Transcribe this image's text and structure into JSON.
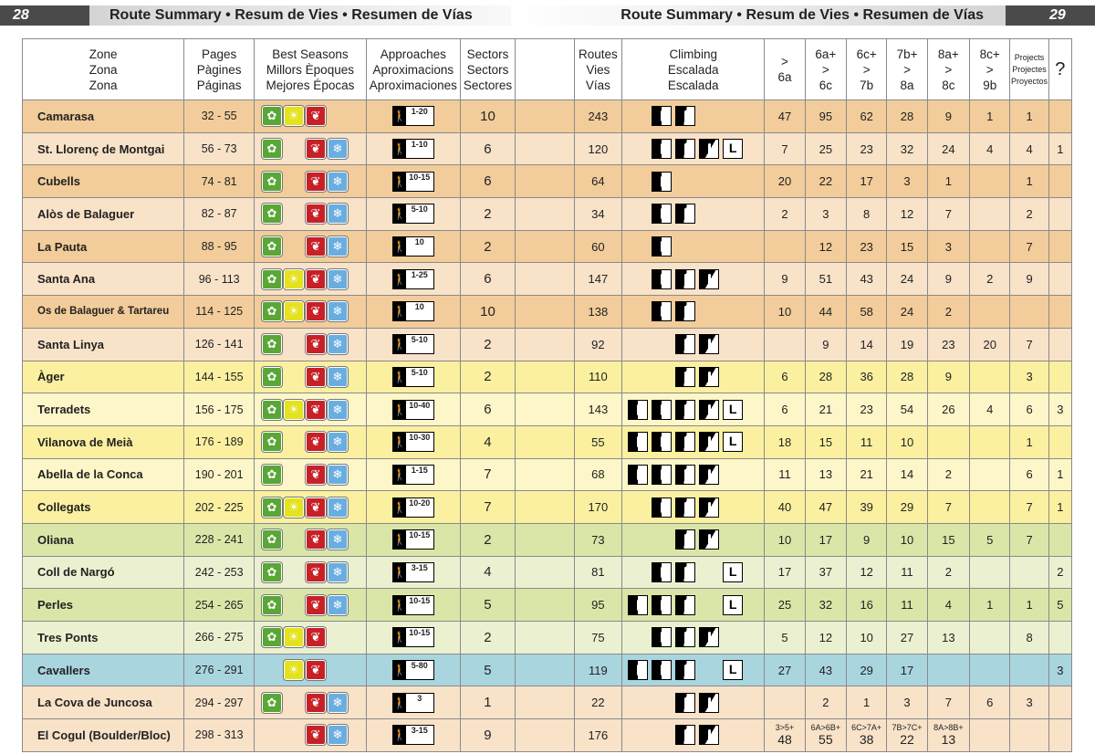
{
  "header": {
    "page_left": "28",
    "page_right": "29",
    "title": "Route Summary • Resum de Vies • Resumen de Vías"
  },
  "colors": {
    "orange": "#f2cc9a",
    "orange_light": "#f8e2c8",
    "yellow": "#fbf0a0",
    "yellow_light": "#fdf6c8",
    "green": "#d9e6a8",
    "green_light": "#ebf1d0",
    "blue": "#a9d5df"
  },
  "columns": {
    "zone": [
      "Zone",
      "Zona",
      "Zona"
    ],
    "pages": [
      "Pages",
      "Pàgines",
      "Páginas"
    ],
    "seasons": [
      "Best Seasons",
      "Millors Èpoques",
      "Mejores Épocas"
    ],
    "approaches": [
      "Approaches",
      "Aproximacions",
      "Aproximaciones"
    ],
    "sectors": [
      "Sectors",
      "Sectors",
      "Sectores"
    ],
    "routes": [
      "Routes",
      "Vies",
      "Vías"
    ],
    "climbing": [
      "Climbing",
      "Escalada",
      "Escalada"
    ],
    "g1": [
      ">",
      "6a"
    ],
    "g2": [
      "6a+",
      ">",
      "6c"
    ],
    "g3": [
      "6c+",
      ">",
      "7b"
    ],
    "g4": [
      "7b+",
      ">",
      "8a"
    ],
    "g5": [
      "8a+",
      ">",
      "8c"
    ],
    "g6": [
      "8c+",
      ">",
      "9b"
    ],
    "projects": [
      "Projects",
      "Projectes",
      "Proyectos"
    ],
    "unknown": "?"
  },
  "rows": [
    {
      "zone": "Camarasa",
      "pages": "32 - 55",
      "seasons": [
        "spring",
        "summer",
        "autumn",
        "blank"
      ],
      "approach": "1-20",
      "sectors": "10",
      "routes": "243",
      "climb": [
        "blank",
        "vert",
        "slab",
        "blank",
        "blank"
      ],
      "g": [
        "47",
        "95",
        "62",
        "28",
        "9",
        "1",
        "1",
        ""
      ],
      "color": "orange"
    },
    {
      "zone": "St. Llorenç de Montgai",
      "pages": "56 - 73",
      "seasons": [
        "spring",
        "blank",
        "autumn",
        "winter"
      ],
      "approach": "1-10",
      "sectors": "6",
      "routes": "120",
      "climb": [
        "blank",
        "vert",
        "slab",
        "over",
        "long"
      ],
      "g": [
        "7",
        "25",
        "23",
        "32",
        "24",
        "4",
        "4",
        "1"
      ],
      "color": "orange_light"
    },
    {
      "zone": "Cubells",
      "pages": "74 - 81",
      "seasons": [
        "spring",
        "blank",
        "autumn",
        "winter"
      ],
      "approach": "10-15",
      "sectors": "6",
      "routes": "64",
      "climb": [
        "blank",
        "vert",
        "blank",
        "blank",
        "blank"
      ],
      "g": [
        "20",
        "22",
        "17",
        "3",
        "1",
        "",
        "1",
        ""
      ],
      "color": "orange"
    },
    {
      "zone": "Alòs de Balaguer",
      "pages": "82 - 87",
      "seasons": [
        "spring",
        "blank",
        "autumn",
        "winter"
      ],
      "approach": "5-10",
      "sectors": "2",
      "routes": "34",
      "climb": [
        "blank",
        "vert",
        "slab",
        "blank",
        "blank"
      ],
      "g": [
        "2",
        "3",
        "8",
        "12",
        "7",
        "",
        "2",
        ""
      ],
      "color": "orange_light"
    },
    {
      "zone": "La Pauta",
      "pages": "88 - 95",
      "seasons": [
        "spring",
        "blank",
        "autumn",
        "winter"
      ],
      "approach": "10",
      "sectors": "2",
      "routes": "60",
      "climb": [
        "blank",
        "vert",
        "blank",
        "blank",
        "blank"
      ],
      "g": [
        "",
        "12",
        "23",
        "15",
        "3",
        "",
        "7",
        ""
      ],
      "color": "orange"
    },
    {
      "zone": "Santa Ana",
      "pages": "96 - 113",
      "seasons": [
        "spring",
        "summer",
        "autumn",
        "winter"
      ],
      "approach": "1-25",
      "sectors": "6",
      "routes": "147",
      "climb": [
        "blank",
        "vert",
        "slab",
        "over",
        "blank"
      ],
      "g": [
        "9",
        "51",
        "43",
        "24",
        "9",
        "2",
        "9",
        ""
      ],
      "color": "orange_light"
    },
    {
      "zone": "Os de Balaguer  & Tartareu",
      "pages": "114 - 125",
      "seasons": [
        "spring",
        "summer",
        "autumn",
        "winter"
      ],
      "approach": "10",
      "sectors": "10",
      "routes": "138",
      "climb": [
        "blank",
        "vert",
        "slab",
        "blank",
        "blank"
      ],
      "g": [
        "10",
        "44",
        "58",
        "24",
        "2",
        "",
        "",
        ""
      ],
      "color": "orange",
      "small": true
    },
    {
      "zone": "Santa Linya",
      "pages": "126 - 141",
      "seasons": [
        "spring",
        "blank",
        "autumn",
        "winter"
      ],
      "approach": "5-10",
      "sectors": "2",
      "routes": "92",
      "climb": [
        "blank",
        "blank",
        "slab",
        "over",
        "blank"
      ],
      "g": [
        "",
        "9",
        "14",
        "19",
        "23",
        "20",
        "7",
        ""
      ],
      "color": "orange_light"
    },
    {
      "zone": "Àger",
      "pages": "144 - 155",
      "seasons": [
        "spring",
        "blank",
        "autumn",
        "winter"
      ],
      "approach": "5-10",
      "sectors": "2",
      "routes": "110",
      "climb": [
        "blank",
        "blank",
        "slab",
        "over",
        "blank"
      ],
      "g": [
        "6",
        "28",
        "36",
        "28",
        "9",
        "",
        "3",
        ""
      ],
      "color": "yellow"
    },
    {
      "zone": "Terradets",
      "pages": "156 - 175",
      "seasons": [
        "spring",
        "summer",
        "autumn",
        "winter"
      ],
      "approach": "10-40",
      "sectors": "6",
      "routes": "143",
      "climb": [
        "vert",
        "vert",
        "slab",
        "over",
        "long"
      ],
      "g": [
        "6",
        "21",
        "23",
        "54",
        "26",
        "4",
        "6",
        "3"
      ],
      "color": "yellow_light"
    },
    {
      "zone": "Vilanova de Meià",
      "pages": "176 - 189",
      "seasons": [
        "spring",
        "blank",
        "autumn",
        "winter"
      ],
      "approach": "10-30",
      "sectors": "4",
      "routes": "55",
      "climb": [
        "vert",
        "vert",
        "slab",
        "over",
        "long"
      ],
      "g": [
        "18",
        "15",
        "11",
        "10",
        "",
        "",
        "1",
        ""
      ],
      "color": "yellow"
    },
    {
      "zone": "Abella de la Conca",
      "pages": "190 - 201",
      "seasons": [
        "spring",
        "blank",
        "autumn",
        "winter"
      ],
      "approach": "1-15",
      "sectors": "7",
      "routes": "68",
      "climb": [
        "vert",
        "vert",
        "slab",
        "over",
        "blank"
      ],
      "g": [
        "11",
        "13",
        "21",
        "14",
        "2",
        "",
        "6",
        "1"
      ],
      "color": "yellow_light"
    },
    {
      "zone": "Collegats",
      "pages": "202 - 225",
      "seasons": [
        "spring",
        "summer",
        "autumn",
        "winter"
      ],
      "approach": "10-20",
      "sectors": "7",
      "routes": "170",
      "climb": [
        "blank",
        "vert",
        "slab",
        "over",
        "blank"
      ],
      "g": [
        "40",
        "47",
        "39",
        "29",
        "7",
        "",
        "7",
        "1"
      ],
      "color": "yellow"
    },
    {
      "zone": "Oliana",
      "pages": "228 - 241",
      "seasons": [
        "spring",
        "blank",
        "autumn",
        "winter"
      ],
      "approach": "10-15",
      "sectors": "2",
      "routes": "73",
      "climb": [
        "blank",
        "blank",
        "slab",
        "over",
        "blank"
      ],
      "g": [
        "10",
        "17",
        "9",
        "10",
        "15",
        "5",
        "7",
        ""
      ],
      "color": "green"
    },
    {
      "zone": "Coll de Nargó",
      "pages": "242 - 253",
      "seasons": [
        "spring",
        "blank",
        "autumn",
        "winter"
      ],
      "approach": "3-15",
      "sectors": "4",
      "routes": "81",
      "climb": [
        "blank",
        "vert",
        "slab",
        "blank",
        "long"
      ],
      "g": [
        "17",
        "37",
        "12",
        "11",
        "2",
        "",
        "",
        "2"
      ],
      "color": "green_light"
    },
    {
      "zone": "Perles",
      "pages": "254 - 265",
      "seasons": [
        "spring",
        "blank",
        "autumn",
        "winter"
      ],
      "approach": "10-15",
      "sectors": "5",
      "routes": "95",
      "climb": [
        "vert",
        "vert",
        "slab",
        "blank",
        "long"
      ],
      "g": [
        "25",
        "32",
        "16",
        "11",
        "4",
        "1",
        "1",
        "5"
      ],
      "color": "green"
    },
    {
      "zone": "Tres Ponts",
      "pages": "266 - 275",
      "seasons": [
        "spring",
        "summer",
        "autumn",
        "blank"
      ],
      "approach": "10-15",
      "sectors": "2",
      "routes": "75",
      "climb": [
        "blank",
        "vert",
        "slab",
        "over",
        "blank"
      ],
      "g": [
        "5",
        "12",
        "10",
        "27",
        "13",
        "",
        "8",
        ""
      ],
      "color": "green_light"
    },
    {
      "zone": "Cavallers",
      "pages": "276 - 291",
      "seasons": [
        "blank",
        "summer",
        "autumn",
        "blank"
      ],
      "approach": "5-80",
      "sectors": "5",
      "routes": "119",
      "climb": [
        "vert",
        "vert",
        "slab",
        "blank",
        "long"
      ],
      "g": [
        "27",
        "43",
        "29",
        "17",
        "",
        "",
        "",
        "3"
      ],
      "color": "blue"
    },
    {
      "zone": "La Cova de Juncosa",
      "pages": "294 - 297",
      "seasons": [
        "spring",
        "blank",
        "autumn",
        "winter"
      ],
      "approach": "3",
      "sectors": "1",
      "routes": "22",
      "climb": [
        "blank",
        "blank",
        "slab",
        "over",
        "blank"
      ],
      "g": [
        "",
        "2",
        "1",
        "3",
        "7",
        "6",
        "3",
        ""
      ],
      "color": "orange_light"
    },
    {
      "zone": "El Cogul (Boulder/Bloc)",
      "pages": "298 - 313",
      "seasons": [
        "blank",
        "blank",
        "autumn",
        "winter"
      ],
      "approach": "3-15",
      "sectors": "9",
      "routes": "176",
      "climb": [
        "blank",
        "blank",
        "slab",
        "over",
        "blank"
      ],
      "g": [
        "3>5+|48",
        "6A>6B+|55",
        "6C>7A+|38",
        "7B>7C+|22",
        "8A>8B+|13",
        "",
        "",
        ""
      ],
      "color": "orange_light"
    }
  ]
}
